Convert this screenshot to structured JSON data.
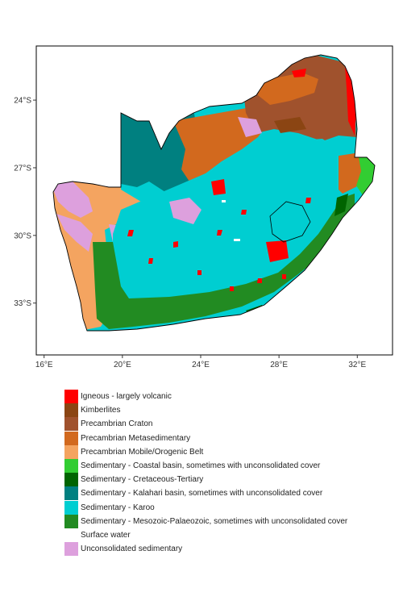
{
  "map": {
    "x_ticks": [
      {
        "lon": 16,
        "label": "16°E"
      },
      {
        "lon": 20,
        "label": "20°E"
      },
      {
        "lon": 24,
        "label": "24°E"
      },
      {
        "lon": 28,
        "label": "28°E"
      },
      {
        "lon": 32,
        "label": "32°E"
      }
    ],
    "y_ticks": [
      {
        "lat": -24,
        "label": "24°S"
      },
      {
        "lat": -27,
        "label": "27°S"
      },
      {
        "lat": -30,
        "label": "30°S"
      },
      {
        "lat": -33,
        "label": "33°S"
      }
    ],
    "extent": {
      "lon_min": 15.6,
      "lon_max": 33.8,
      "lat_min": -35.3,
      "lat_max": -21.6
    }
  },
  "legend": {
    "items": [
      {
        "label": "Igneous - largely volcanic",
        "color": "#ff0000"
      },
      {
        "label": "Kimberlites",
        "color": "#8b4513"
      },
      {
        "label": "Precambrian Craton",
        "color": "#a0522d"
      },
      {
        "label": "Precambrian Metasedimentary",
        "color": "#d2691e"
      },
      {
        "label": "Precambrian Mobile/Orogenic Belt",
        "color": "#f4a460"
      },
      {
        "label": "Sedimentary - Coastal basin, sometimes with unconsolidated cover",
        "color": "#32cd32"
      },
      {
        "label": "Sedimentary - Cretaceous-Tertiary",
        "color": "#006400"
      },
      {
        "label": "Sedimentary - Kalahari basin, sometimes with unconsolidated cover",
        "color": "#008080"
      },
      {
        "label": "Sedimentary - Karoo",
        "color": "#00ced1"
      },
      {
        "label": "Sedimentary - Mesozoic-Palaeozoic, sometimes with unconsolidated cover",
        "color": "#228b22"
      },
      {
        "label": "Surface water",
        "color": "#ffffff"
      },
      {
        "label": "Unconsolidated sedimentary",
        "color": "#dda0dd"
      }
    ]
  }
}
